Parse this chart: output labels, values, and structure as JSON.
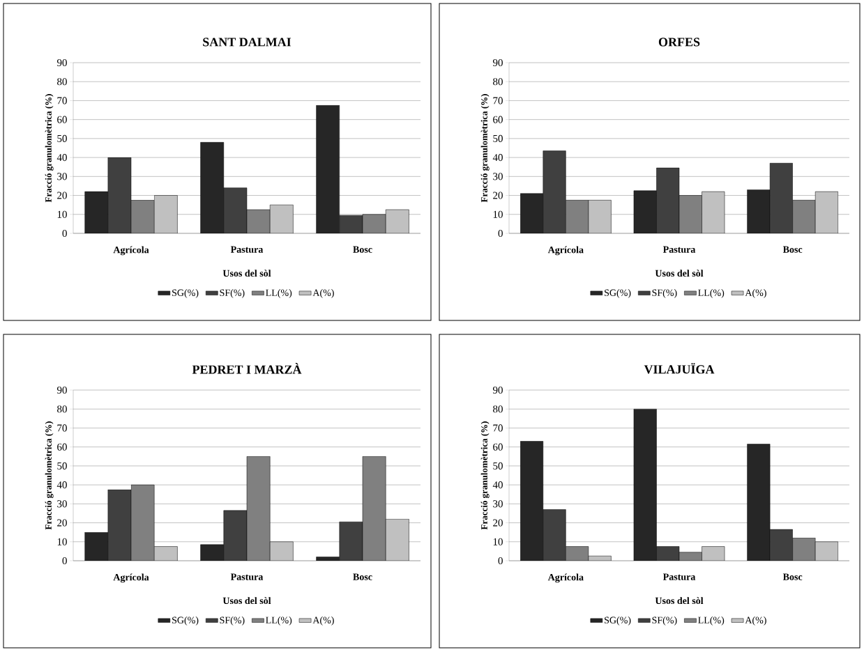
{
  "chart_data": [
    {
      "type": "bar",
      "title": "SANT DALMAI",
      "xlabel": "Usos del sòl",
      "ylabel": "Fracció granulomètrica (%)",
      "categories": [
        "Agrícola",
        "Pastura",
        "Bosc"
      ],
      "ylim": [
        0,
        90
      ],
      "yticks": [
        0,
        10,
        20,
        30,
        40,
        50,
        60,
        70,
        80,
        90
      ],
      "grid": "y",
      "legend": "bottom",
      "series": [
        {
          "name": "SG(%)",
          "color": "#262626",
          "values": [
            22,
            48,
            67.5
          ]
        },
        {
          "name": "SF(%)",
          "color": "#404040",
          "values": [
            40,
            24,
            9.5
          ]
        },
        {
          "name": "LL(%)",
          "color": "#808080",
          "values": [
            17.5,
            12.5,
            10
          ]
        },
        {
          "name": "A(%)",
          "color": "#c0c0c0",
          "values": [
            20,
            15,
            12.5
          ]
        }
      ]
    },
    {
      "type": "bar",
      "title": "ORFES",
      "xlabel": "Usos del sòl",
      "ylabel": "Fracció granulomètrica (%)",
      "categories": [
        "Agrícola",
        "Pastura",
        "Bosc"
      ],
      "ylim": [
        0,
        90
      ],
      "yticks": [
        0,
        10,
        20,
        30,
        40,
        50,
        60,
        70,
        80,
        90
      ],
      "grid": "y",
      "legend": "bottom",
      "series": [
        {
          "name": "SG(%)",
          "color": "#262626",
          "values": [
            21,
            22.5,
            23
          ]
        },
        {
          "name": "SF(%)",
          "color": "#404040",
          "values": [
            43.5,
            34.5,
            37
          ]
        },
        {
          "name": "LL(%)",
          "color": "#808080",
          "values": [
            17.5,
            20,
            17.5
          ]
        },
        {
          "name": "A(%)",
          "color": "#c0c0c0",
          "values": [
            17.5,
            22,
            22
          ]
        }
      ]
    },
    {
      "type": "bar",
      "title": "PEDRET I MARZÀ",
      "xlabel": "Usos del sòl",
      "ylabel": "Fracció granulomètrica (%)",
      "categories": [
        "Agrícola",
        "Pastura",
        "Bosc"
      ],
      "ylim": [
        0,
        90
      ],
      "yticks": [
        0,
        10,
        20,
        30,
        40,
        50,
        60,
        70,
        80,
        90
      ],
      "grid": "y",
      "legend": "bottom",
      "series": [
        {
          "name": "SG(%)",
          "color": "#262626",
          "values": [
            15,
            8.5,
            2
          ]
        },
        {
          "name": "SF(%)",
          "color": "#404040",
          "values": [
            37.5,
            26.5,
            20.5
          ]
        },
        {
          "name": "LL(%)",
          "color": "#808080",
          "values": [
            40,
            55,
            55
          ]
        },
        {
          "name": "A(%)",
          "color": "#c0c0c0",
          "values": [
            7.5,
            10,
            22
          ]
        }
      ]
    },
    {
      "type": "bar",
      "title": "VILAJUÏGA",
      "xlabel": "Usos del sòl",
      "ylabel": "Fracció granulomètrica (%)",
      "categories": [
        "Agrícola",
        "Pastura",
        "Bosc"
      ],
      "ylim": [
        0,
        90
      ],
      "yticks": [
        0,
        10,
        20,
        30,
        40,
        50,
        60,
        70,
        80,
        90
      ],
      "grid": "y",
      "legend": "bottom",
      "series": [
        {
          "name": "SG(%)",
          "color": "#262626",
          "values": [
            63,
            80,
            61.5
          ]
        },
        {
          "name": "SF(%)",
          "color": "#404040",
          "values": [
            27,
            7.5,
            16.5
          ]
        },
        {
          "name": "LL(%)",
          "color": "#808080",
          "values": [
            7.5,
            4.5,
            12
          ]
        },
        {
          "name": "A(%)",
          "color": "#c0c0c0",
          "values": [
            2.5,
            7.5,
            10
          ]
        }
      ]
    }
  ]
}
